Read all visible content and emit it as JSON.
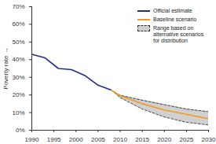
{
  "chart_data": {
    "type": "line",
    "y_label": "Poverty rate",
    "x": [
      1990,
      1993,
      1996,
      1999,
      2002,
      2005,
      2008,
      2010,
      2015,
      2020,
      2025,
      2030
    ],
    "series": [
      {
        "name": "Official estimate",
        "color": "#1f2f8a",
        "type": "line",
        "values": [
          43,
          41,
          35,
          34.3,
          31,
          25.5,
          22.7,
          null,
          null,
          null,
          null,
          null
        ]
      },
      {
        "name": "Baseline scenario",
        "color": "#f39a1e",
        "type": "line",
        "values": [
          null,
          null,
          null,
          null,
          null,
          null,
          22.7,
          19.5,
          15,
          11.5,
          9,
          6.5
        ]
      },
      {
        "name": "Range based on alternative scenarios for distribution",
        "color": "#d0d0d0",
        "type": "band",
        "line_style": "dashed",
        "lower": [
          null,
          null,
          null,
          null,
          null,
          null,
          22.7,
          18.5,
          12,
          7.5,
          4.5,
          3
        ],
        "upper": [
          null,
          null,
          null,
          null,
          null,
          null,
          22.7,
          19.8,
          17,
          14.5,
          12,
          10.5
        ]
      }
    ],
    "xlim": [
      1990,
      2030
    ],
    "xticks": [
      1990,
      1995,
      2000,
      2005,
      2010,
      2015,
      2020,
      2025,
      2030
    ],
    "ylim": [
      0,
      70
    ],
    "yticks": [
      {
        "value": 0,
        "label": "0%"
      },
      {
        "value": 10,
        "label": "10%"
      },
      {
        "value": 20,
        "label": "20%"
      },
      {
        "value": 30,
        "label": "30%"
      },
      {
        "value": 40,
        "label": "40%"
      },
      {
        "value": 50,
        "label": "50%"
      },
      {
        "value": 60,
        "label": "60%"
      },
      {
        "value": 70,
        "label": "70%"
      }
    ],
    "grid": false,
    "legend": "top-right"
  }
}
